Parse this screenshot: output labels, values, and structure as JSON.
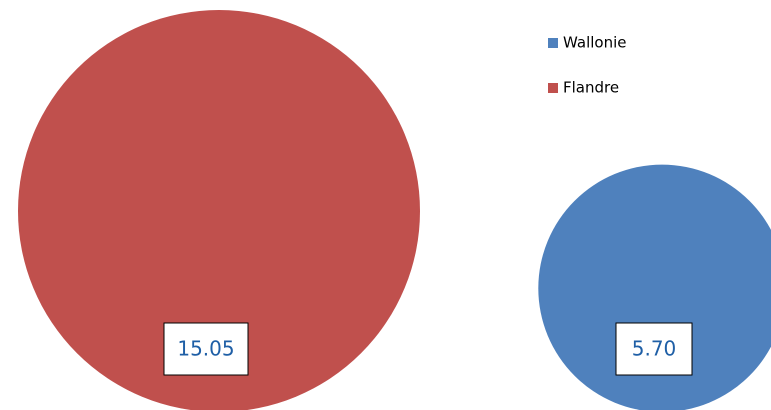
{
  "chart_data": {
    "type": "bubble",
    "series": [
      {
        "name": "Wallonie",
        "color": "#4f81bd",
        "values": [
          5.7
        ],
        "value_labels": [
          "5.70"
        ]
      },
      {
        "name": "Flandre",
        "color": "#c0504d",
        "values": [
          15.05
        ],
        "value_labels": [
          "15.05"
        ]
      }
    ],
    "legend": "top-right"
  }
}
